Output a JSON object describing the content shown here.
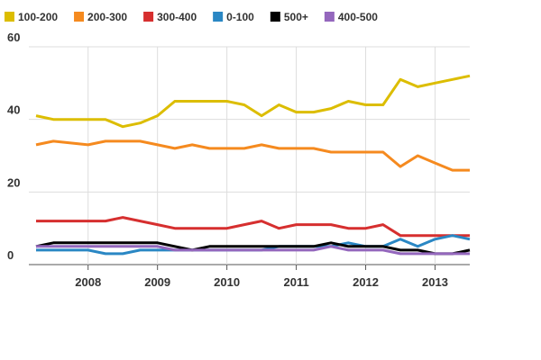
{
  "chart_data": {
    "type": "line",
    "categories": [
      null,
      null,
      null,
      "2008",
      null,
      null,
      null,
      "2009",
      null,
      null,
      null,
      "2010",
      null,
      null,
      null,
      "2011",
      null,
      null,
      null,
      "2012",
      null,
      null,
      null,
      "2013",
      null,
      null
    ],
    "series": [
      {
        "name": "100-200",
        "color": "#dcbd00",
        "values": [
          41,
          40,
          40,
          40,
          40,
          38,
          39,
          41,
          45,
          45,
          45,
          45,
          44,
          41,
          44,
          42,
          42,
          43,
          45,
          44,
          44,
          51,
          49,
          50,
          51,
          52
        ]
      },
      {
        "name": "200-300",
        "color": "#f58a1f",
        "values": [
          33,
          34,
          33.5,
          33,
          34,
          34,
          34,
          33,
          32,
          33,
          32,
          32,
          32,
          33,
          32,
          32,
          32,
          31,
          31,
          31,
          31,
          27,
          30,
          28,
          26,
          26
        ]
      },
      {
        "name": "300-400",
        "color": "#d62f2f",
        "values": [
          12,
          12,
          12,
          12,
          12,
          13,
          12,
          11,
          10,
          10,
          10,
          10,
          11,
          12,
          10,
          11,
          11,
          11,
          10,
          10,
          11,
          8,
          8,
          8,
          8,
          8
        ]
      },
      {
        "name": "0-100",
        "color": "#2a87c4",
        "values": [
          4,
          4,
          4,
          4,
          3,
          3,
          4,
          4,
          4,
          4,
          4,
          4,
          4,
          4,
          5,
          5,
          5,
          5,
          6,
          5,
          5,
          7,
          5,
          7,
          8,
          7
        ]
      },
      {
        "name": "500+",
        "color": "#000000",
        "values": [
          5,
          6,
          6,
          6,
          6,
          6,
          6,
          6,
          5,
          4,
          5,
          5,
          5,
          5,
          5,
          5,
          5,
          6,
          5,
          5,
          5,
          4,
          4,
          3,
          3,
          4
        ]
      },
      {
        "name": "400-500",
        "color": "#9467bd",
        "values": [
          5,
          5,
          5,
          5,
          5,
          5,
          5,
          5,
          4,
          4,
          4,
          4,
          4,
          4,
          4,
          4,
          4,
          5,
          4,
          4,
          4,
          3,
          3,
          3,
          3,
          3
        ]
      }
    ],
    "ylim": [
      0,
      60
    ],
    "yticks": [
      0,
      20,
      40,
      60
    ],
    "grid": true
  }
}
